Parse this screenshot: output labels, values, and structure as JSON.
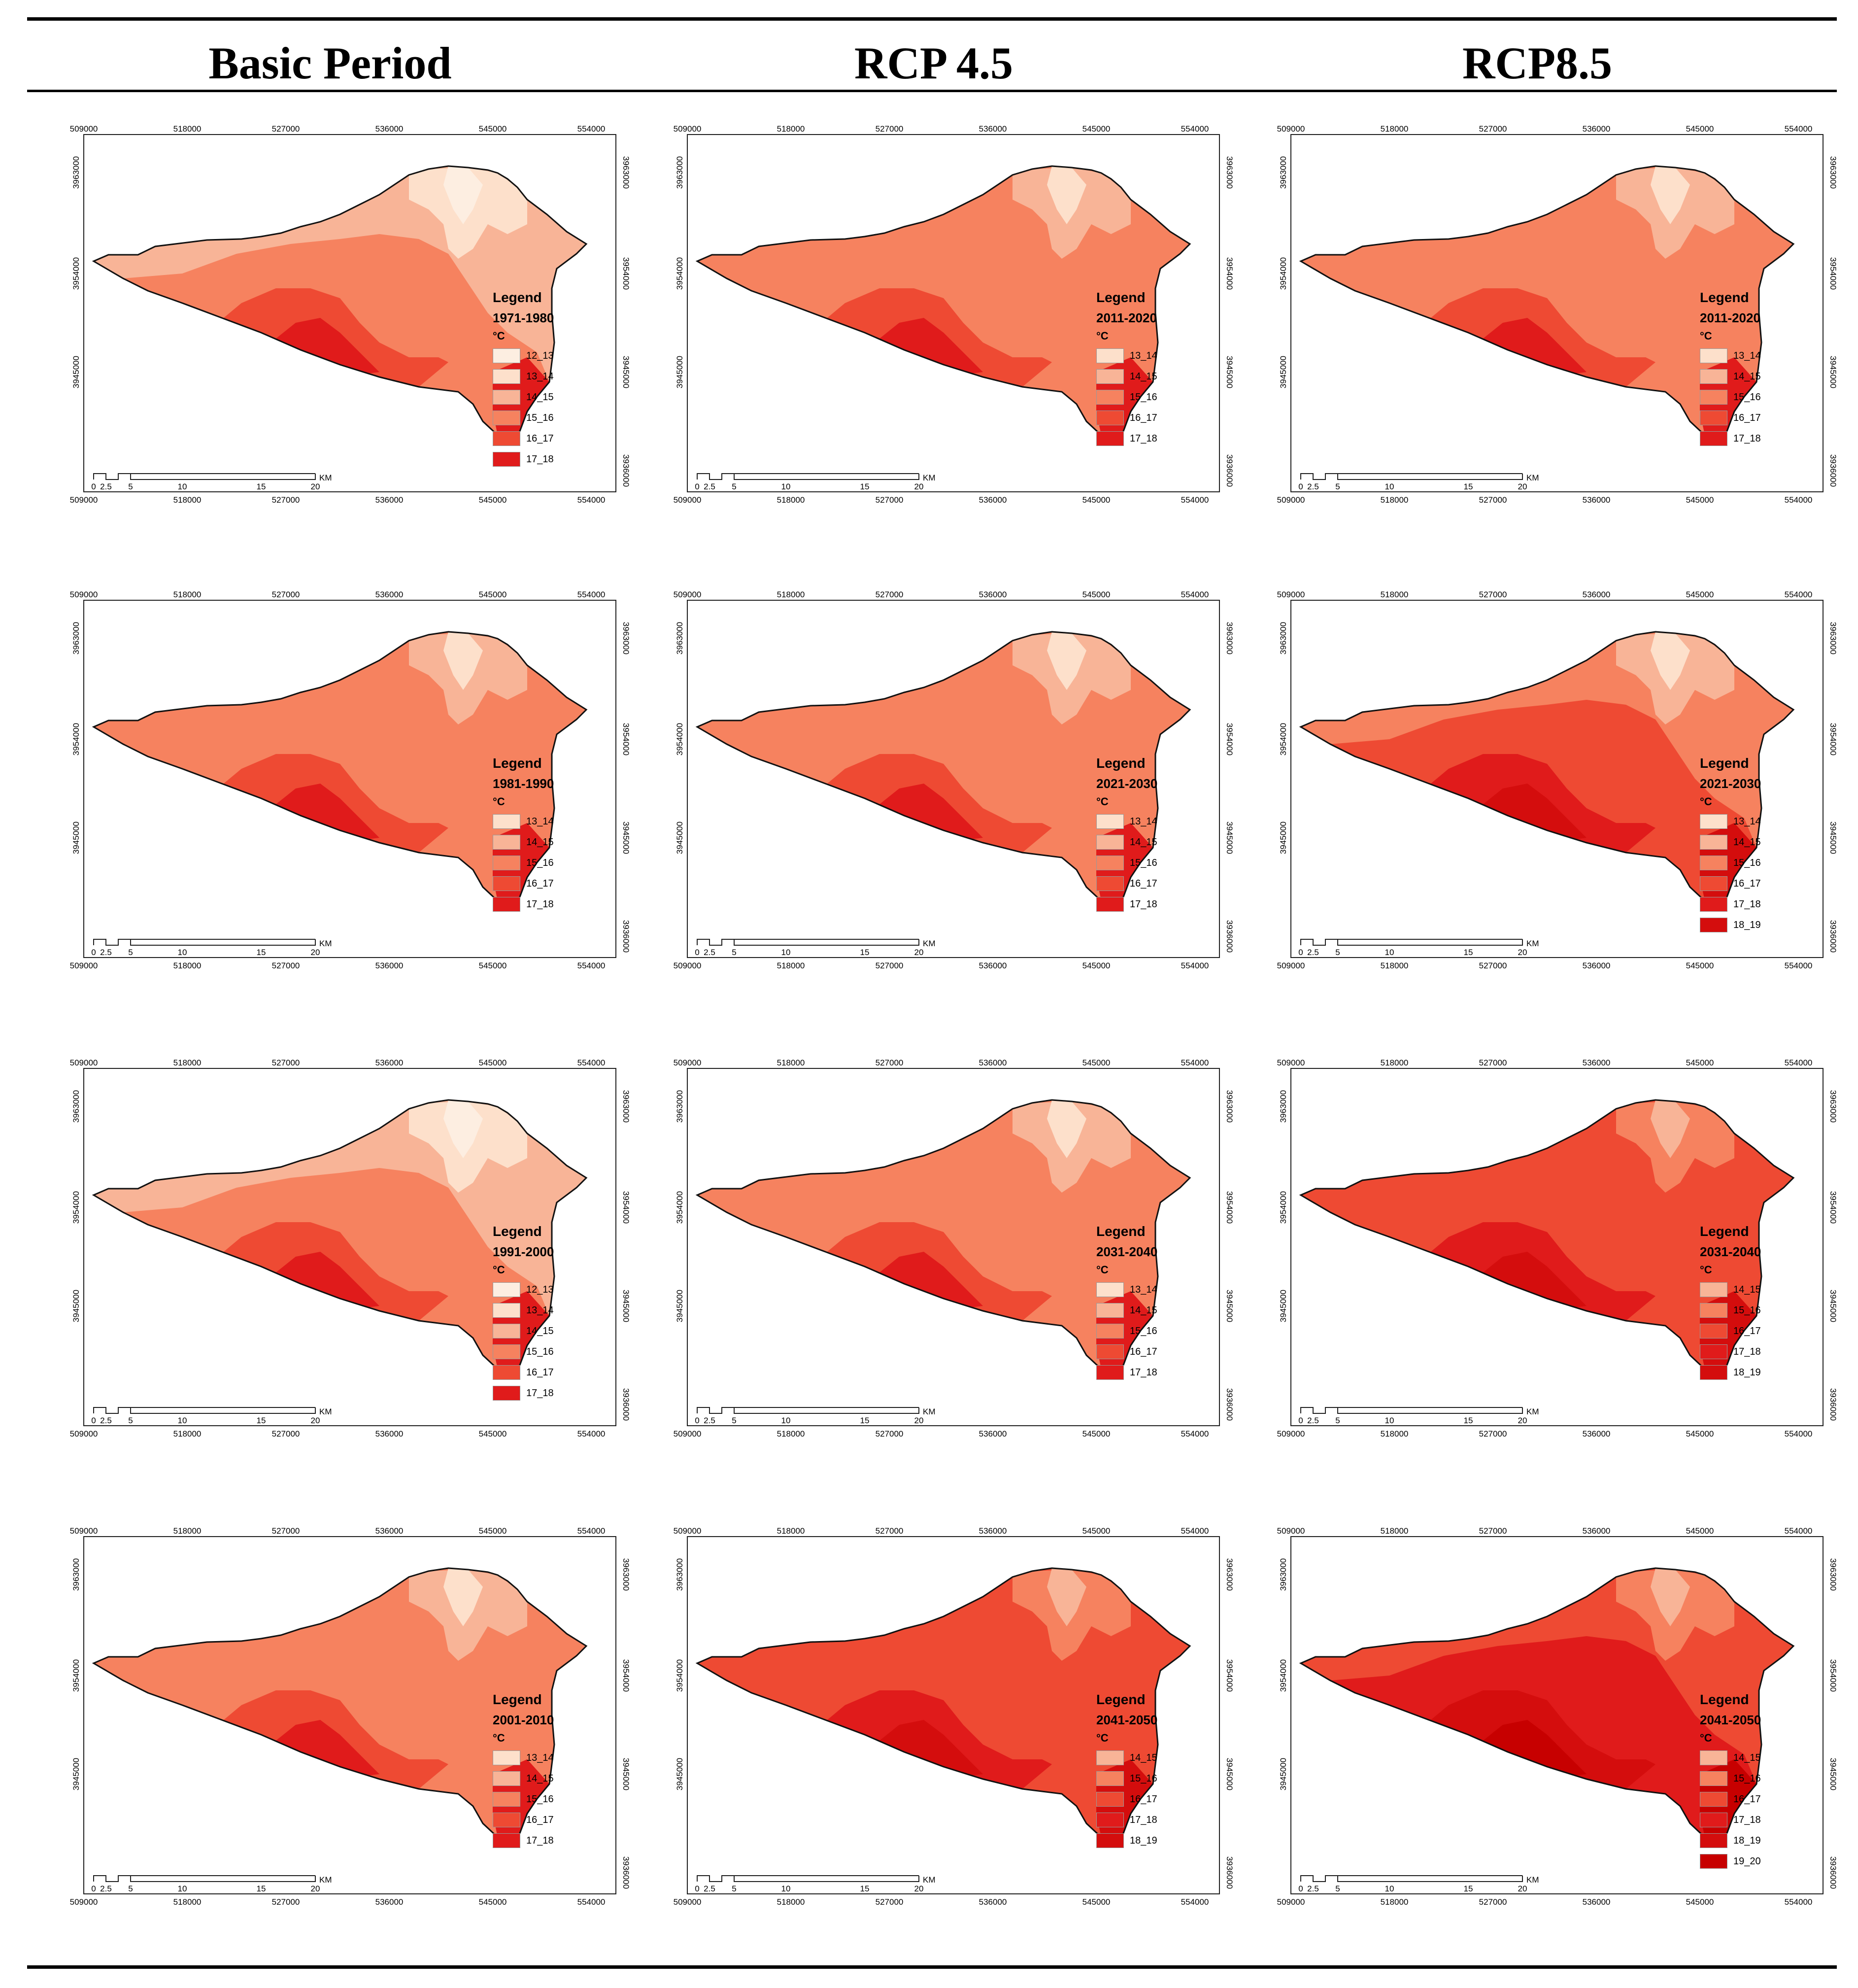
{
  "headers": [
    "Basic Period",
    "RCP 4.5",
    "RCP8.5"
  ],
  "colors": {
    "12_13": "#fdeee1",
    "13_14": "#fde0cb",
    "14_15": "#f8b497",
    "15_16": "#f6825f",
    "16_17": "#ee4a33",
    "17_18": "#e01b1b",
    "18_19": "#d40d0d",
    "19_20": "#c70000"
  },
  "axes": {
    "x_top": [
      "509000",
      "518000",
      "527000",
      "536000",
      "545000",
      "554000"
    ],
    "x_bottom": [
      "509000",
      "518000",
      "527000",
      "536000",
      "545000",
      "554000"
    ],
    "y_left": [
      "3963000",
      "3954000",
      "3945000"
    ],
    "y_right": [
      "3963000",
      "3954000",
      "3945000",
      "3936000"
    ],
    "scale_labels": [
      "0",
      "2.5",
      "5",
      "10",
      "15",
      "20"
    ],
    "scale_unit": "KM"
  },
  "legend_title": "Legend",
  "unit_label": "°C",
  "maps": [
    {
      "period": "1971-1980",
      "classes": [
        "12_13",
        "13_14",
        "14_15",
        "15_16",
        "16_17",
        "17_18"
      ]
    },
    {
      "period": "2011-2020",
      "classes": [
        "13_14",
        "14_15",
        "15_16",
        "16_17",
        "17_18"
      ]
    },
    {
      "period": "2011-2020",
      "classes": [
        "13_14",
        "14_15",
        "15_16",
        "16_17",
        "17_18"
      ]
    },
    {
      "period": "1981-1990",
      "classes": [
        "13_14",
        "14_15",
        "15_16",
        "16_17",
        "17_18"
      ]
    },
    {
      "period": "2021-2030",
      "classes": [
        "13_14",
        "14_15",
        "15_16",
        "16_17",
        "17_18"
      ]
    },
    {
      "period": "2021-2030",
      "classes": [
        "13_14",
        "14_15",
        "15_16",
        "16_17",
        "17_18",
        "18_19"
      ]
    },
    {
      "period": "1991-2000",
      "classes": [
        "12_13",
        "13_14",
        "14_15",
        "15_16",
        "16_17",
        "17_18"
      ]
    },
    {
      "period": "2031-2040",
      "classes": [
        "13_14",
        "14_15",
        "15_16",
        "16_17",
        "17_18"
      ]
    },
    {
      "period": "2031-2040",
      "classes": [
        "14_15",
        "15_16",
        "16_17",
        "17_18",
        "18_19"
      ]
    },
    {
      "period": "2001-2010",
      "classes": [
        "13_14",
        "14_15",
        "15_16",
        "16_17",
        "17_18"
      ]
    },
    {
      "period": "2041-2050",
      "classes": [
        "14_15",
        "15_16",
        "16_17",
        "17_18",
        "18_19"
      ]
    },
    {
      "period": "2041-2050",
      "classes": [
        "14_15",
        "15_16",
        "16_17",
        "17_18",
        "18_19",
        "19_20"
      ]
    }
  ]
}
